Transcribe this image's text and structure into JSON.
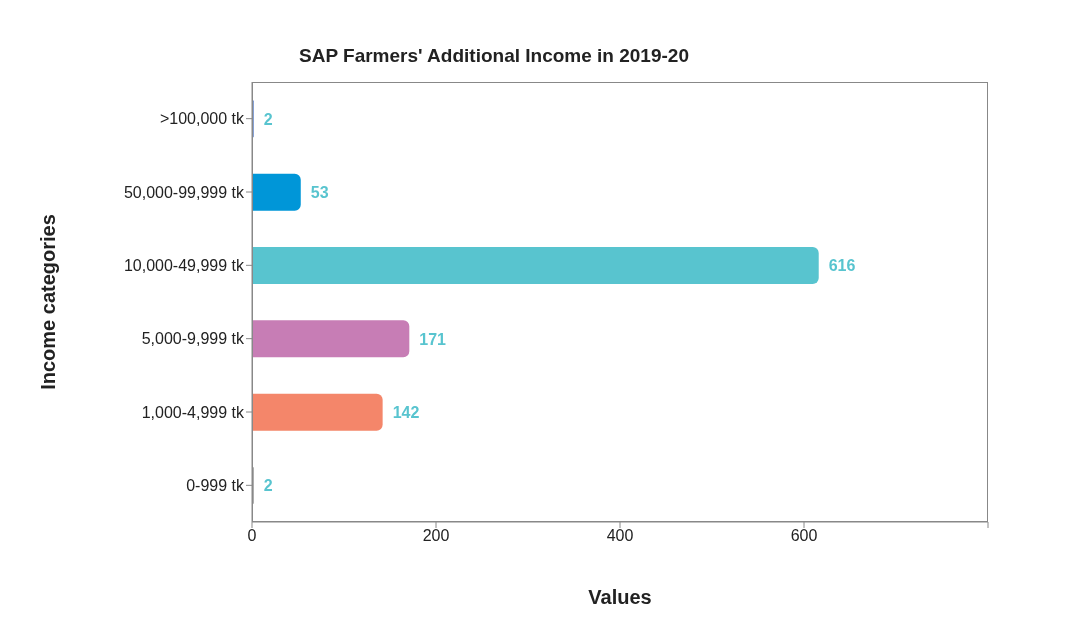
{
  "chart_data": {
    "type": "bar",
    "orientation": "horizontal",
    "title": "SAP Farmers' Additional Income in 2019-20",
    "xlabel": "Values",
    "ylabel": "Income categories",
    "categories": [
      ">100,000 tk",
      "50,000-99,999 tk",
      "10,000-49,999 tk",
      "5,000-9,999 tk",
      "1,000-4,999 tk",
      "0-999 tk"
    ],
    "values": [
      2,
      53,
      616,
      171,
      142,
      2
    ],
    "colors": [
      "#6f8fcf",
      "#0096d8",
      "#58c4cf",
      "#c77db5",
      "#f4866a",
      "#9e9e9e"
    ],
    "xlim": [
      0,
      800
    ],
    "xticks": [
      0,
      200,
      400,
      600,
      {
        "value": 800,
        "label": null
      }
    ],
    "data_labels": true,
    "grid": false
  }
}
